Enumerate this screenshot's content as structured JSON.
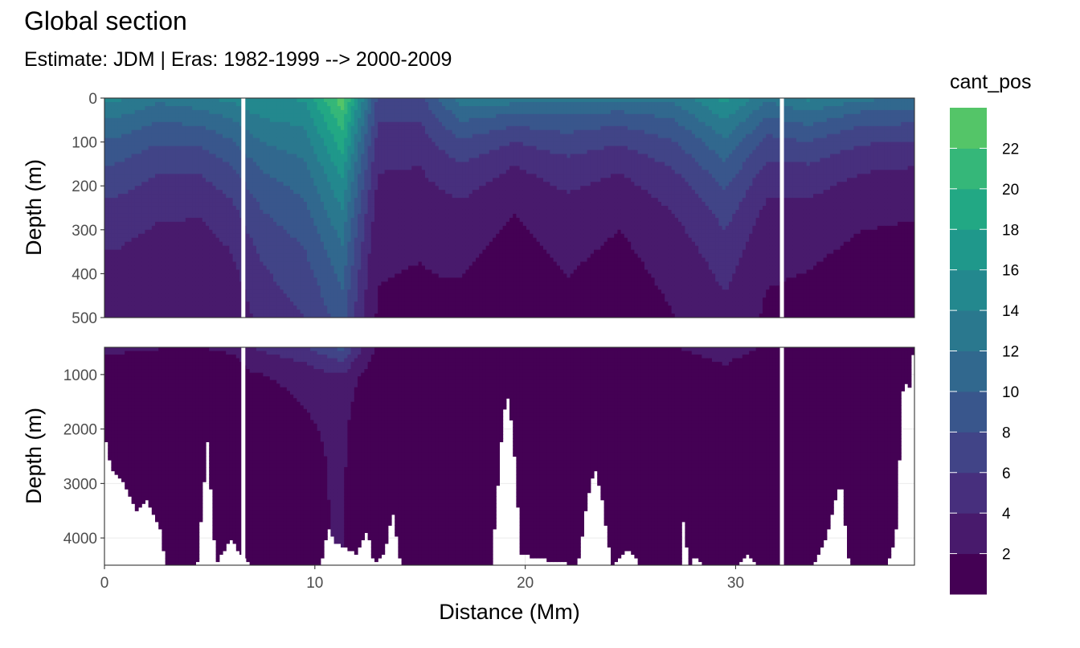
{
  "title": "Global section",
  "subtitle": "Estimate: JDM  | Eras: 1982-1999 --> 2000-2009",
  "colors": {
    "panel_border": "#333333",
    "grid": "#ebebeb",
    "tick_text": "#4d4d4d",
    "no_data": "#ffffff",
    "viridis": [
      "#440154",
      "#481A6C",
      "#472F7D",
      "#414487",
      "#39568C",
      "#31688E",
      "#2A788E",
      "#23888E",
      "#1F988B",
      "#22A884",
      "#35B779",
      "#54C568",
      "#7AD151",
      "#A5DB36",
      "#D2E21B",
      "#FDE725"
    ]
  },
  "chart_data": {
    "type": "heatmap",
    "title": "Global section",
    "subtitle": "Estimate: JDM  | Eras: 1982-1999 --> 2000-2009",
    "xlabel": "Distance (Mm)",
    "x_ticks": [
      0,
      10,
      20,
      30
    ],
    "xlim": [
      0,
      38.5
    ],
    "legend": {
      "title": "cant_pos",
      "placement": "right",
      "breaks": [
        2,
        4,
        6,
        8,
        10,
        12,
        14,
        16,
        18,
        20,
        22
      ],
      "bins": [
        0,
        2,
        4,
        6,
        8,
        10,
        12,
        14,
        16,
        18,
        20,
        22,
        24
      ],
      "colors": [
        "#440154",
        "#481A6C",
        "#472F7D",
        "#414487",
        "#39568C",
        "#31688E",
        "#2A788E",
        "#23888E",
        "#1F988B",
        "#22A884",
        "#35B779",
        "#54C568",
        "#7AD151",
        "#A5DB36",
        "#D2E21B",
        "#FDE725"
      ]
    },
    "panels": [
      {
        "ylabel": "Depth (m)",
        "ylim": [
          0,
          500
        ],
        "y_reversed": true,
        "y_ticks": [
          0,
          100,
          200,
          300,
          400,
          500
        ]
      },
      {
        "ylabel": "Depth (m)",
        "ylim": [
          500,
          4500
        ],
        "y_reversed": true,
        "y_ticks": [
          1000,
          2000,
          3000,
          4000
        ]
      }
    ],
    "gaps_no_data_x": [
      6.6,
      32.2
    ],
    "cant_profiles": [
      {
        "x": 0.5,
        "surface": 14,
        "decay_m": 220,
        "floor": 1.5
      },
      {
        "x": 2.5,
        "surface": 12,
        "decay_m": 200,
        "floor": 1.5
      },
      {
        "x": 4.5,
        "surface": 13,
        "decay_m": 180,
        "floor": 1.5
      },
      {
        "x": 6.0,
        "surface": 14,
        "decay_m": 220,
        "floor": 1.5
      },
      {
        "x": 7.5,
        "surface": 15,
        "decay_m": 300,
        "floor": 2.5
      },
      {
        "x": 9.5,
        "surface": 15,
        "decay_m": 380,
        "floor": 3
      },
      {
        "x": 11.3,
        "surface": 22,
        "decay_m": 420,
        "floor": 3.5
      },
      {
        "x": 13.0,
        "surface": 7,
        "decay_m": 200,
        "floor": 1.5
      },
      {
        "x": 15.0,
        "surface": 7,
        "decay_m": 200,
        "floor": 1.2
      },
      {
        "x": 17.0,
        "surface": 13,
        "decay_m": 160,
        "floor": 1.2
      },
      {
        "x": 19.5,
        "surface": 13,
        "decay_m": 110,
        "floor": 1
      },
      {
        "x": 22.0,
        "surface": 12,
        "decay_m": 150,
        "floor": 1.5
      },
      {
        "x": 24.5,
        "surface": 12,
        "decay_m": 130,
        "floor": 1
      },
      {
        "x": 27.0,
        "surface": 12,
        "decay_m": 180,
        "floor": 1.5
      },
      {
        "x": 29.5,
        "surface": 16,
        "decay_m": 240,
        "floor": 2
      },
      {
        "x": 31.5,
        "surface": 12,
        "decay_m": 160,
        "floor": 1.5
      },
      {
        "x": 33.5,
        "surface": 14,
        "decay_m": 150,
        "floor": 1.2
      },
      {
        "x": 36.0,
        "surface": 12,
        "decay_m": 130,
        "floor": 1
      },
      {
        "x": 38.4,
        "surface": 12,
        "decay_m": 120,
        "floor": 1
      }
    ],
    "bottom_depth_profile": [
      {
        "x": 0.0,
        "depth": 2100
      },
      {
        "x": 0.3,
        "depth": 2700
      },
      {
        "x": 0.8,
        "depth": 2900
      },
      {
        "x": 1.5,
        "depth": 3500
      },
      {
        "x": 2.0,
        "depth": 3300
      },
      {
        "x": 2.7,
        "depth": 3900
      },
      {
        "x": 2.9,
        "depth": 4500
      },
      {
        "x": 4.4,
        "depth": 4500
      },
      {
        "x": 4.9,
        "depth": 2200
      },
      {
        "x": 5.3,
        "depth": 4500
      },
      {
        "x": 6.0,
        "depth": 4000
      },
      {
        "x": 6.5,
        "depth": 4300
      },
      {
        "x": 6.9,
        "depth": 4500
      },
      {
        "x": 10.3,
        "depth": 4500
      },
      {
        "x": 10.6,
        "depth": 3800
      },
      {
        "x": 11.0,
        "depth": 4100
      },
      {
        "x": 12.0,
        "depth": 4300
      },
      {
        "x": 12.5,
        "depth": 3800
      },
      {
        "x": 12.8,
        "depth": 4500
      },
      {
        "x": 13.3,
        "depth": 4300
      },
      {
        "x": 13.7,
        "depth": 3500
      },
      {
        "x": 14.1,
        "depth": 4500
      },
      {
        "x": 18.4,
        "depth": 4500
      },
      {
        "x": 18.9,
        "depth": 2000
      },
      {
        "x": 19.1,
        "depth": 1300
      },
      {
        "x": 19.4,
        "depth": 2000
      },
      {
        "x": 19.8,
        "depth": 4300
      },
      {
        "x": 21.0,
        "depth": 4400
      },
      {
        "x": 22.5,
        "depth": 4500
      },
      {
        "x": 22.9,
        "depth": 3400
      },
      {
        "x": 23.3,
        "depth": 2700
      },
      {
        "x": 23.7,
        "depth": 3400
      },
      {
        "x": 24.1,
        "depth": 4500
      },
      {
        "x": 24.8,
        "depth": 4200
      },
      {
        "x": 25.5,
        "depth": 4500
      },
      {
        "x": 27.4,
        "depth": 4500
      },
      {
        "x": 27.5,
        "depth": 3700
      },
      {
        "x": 27.8,
        "depth": 4500
      },
      {
        "x": 28.1,
        "depth": 4300
      },
      {
        "x": 28.4,
        "depth": 4500
      },
      {
        "x": 30.0,
        "depth": 4500
      },
      {
        "x": 30.5,
        "depth": 4300
      },
      {
        "x": 31.1,
        "depth": 4500
      },
      {
        "x": 33.7,
        "depth": 4500
      },
      {
        "x": 34.3,
        "depth": 4000
      },
      {
        "x": 35.0,
        "depth": 2900
      },
      {
        "x": 35.4,
        "depth": 4500
      },
      {
        "x": 36.2,
        "depth": 4500
      },
      {
        "x": 37.2,
        "depth": 4500
      },
      {
        "x": 37.6,
        "depth": 4000
      },
      {
        "x": 38.0,
        "depth": 800
      },
      {
        "x": 38.2,
        "depth": 1500
      },
      {
        "x": 38.4,
        "depth": 600
      }
    ]
  }
}
